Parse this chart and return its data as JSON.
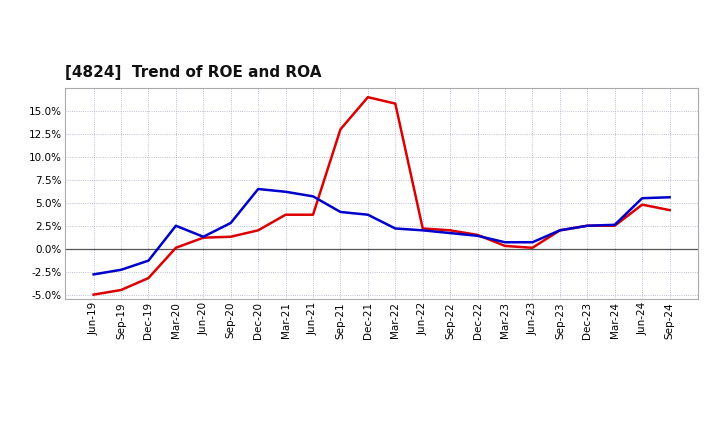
{
  "title": "[4824]  Trend of ROE and ROA",
  "x_labels": [
    "Jun-19",
    "Sep-19",
    "Dec-19",
    "Mar-20",
    "Jun-20",
    "Sep-20",
    "Dec-20",
    "Mar-21",
    "Jun-21",
    "Sep-21",
    "Dec-21",
    "Mar-22",
    "Jun-22",
    "Sep-22",
    "Dec-22",
    "Mar-23",
    "Jun-23",
    "Sep-23",
    "Dec-23",
    "Mar-24",
    "Jun-24",
    "Sep-24"
  ],
  "roe": [
    -5.0,
    -4.5,
    -3.2,
    0.1,
    1.2,
    1.3,
    2.0,
    3.7,
    3.7,
    13.0,
    16.5,
    15.8,
    2.2,
    2.0,
    1.5,
    0.3,
    0.1,
    2.0,
    2.5,
    2.5,
    4.8,
    4.2
  ],
  "roa": [
    -2.8,
    -2.3,
    -1.3,
    2.5,
    1.3,
    2.8,
    6.5,
    6.2,
    5.7,
    4.0,
    3.7,
    2.2,
    2.0,
    1.7,
    1.4,
    0.7,
    0.7,
    2.0,
    2.5,
    2.6,
    5.5,
    5.6
  ],
  "roe_color": "#dd0000",
  "roa_color": "#0000cc",
  "background_color": "#ffffff",
  "plot_bg_color": "#ffffff",
  "grid_color": "#aaaacc",
  "ylim": [
    -5.5,
    17.5
  ],
  "yticks": [
    -5.0,
    -2.5,
    0.0,
    2.5,
    5.0,
    7.5,
    10.0,
    12.5,
    15.0
  ],
  "line_width": 1.8,
  "title_fontsize": 11,
  "tick_fontsize": 7.5
}
